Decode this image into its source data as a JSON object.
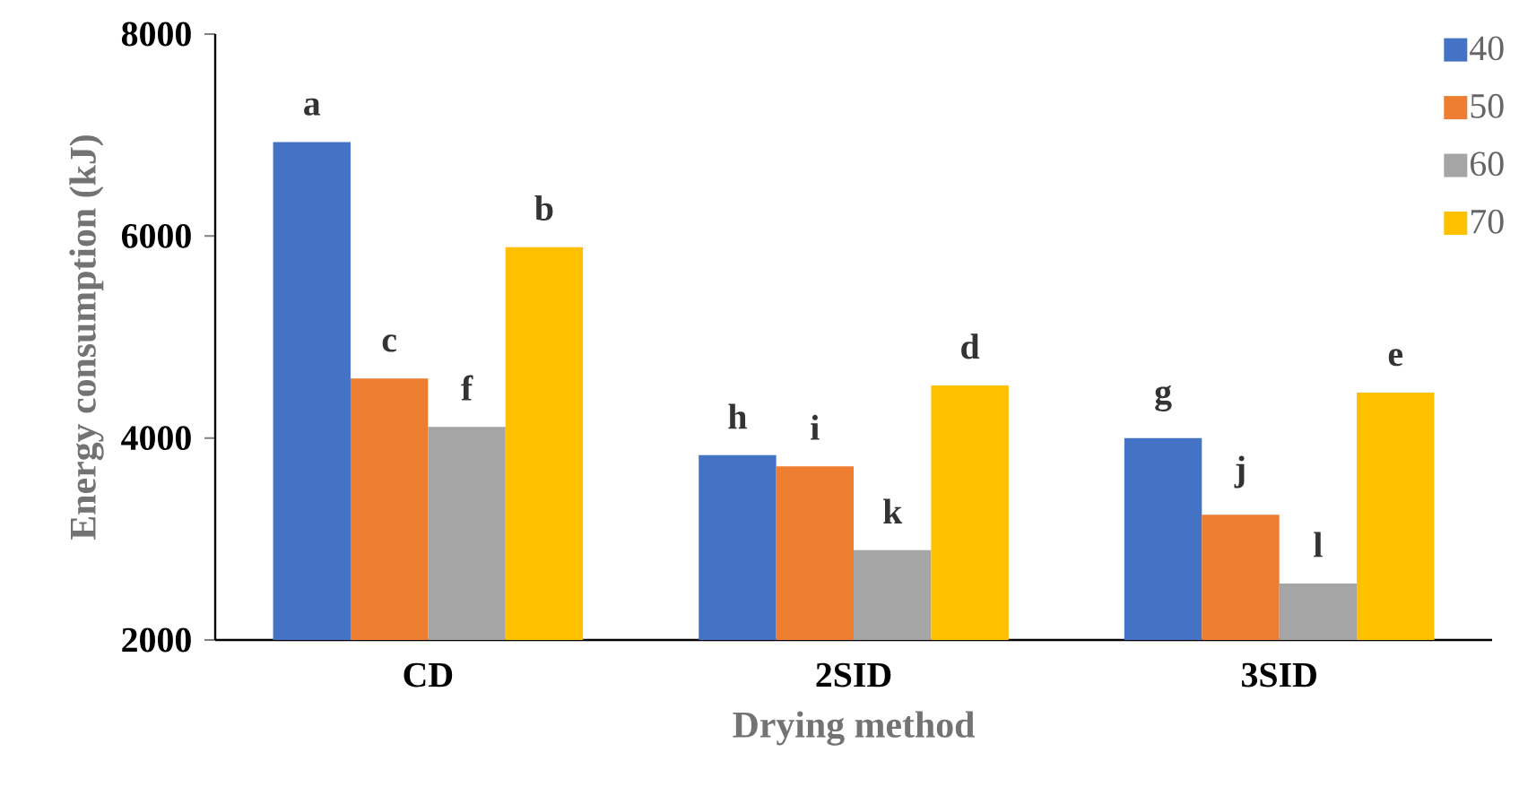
{
  "chart_data": {
    "type": "bar",
    "xlabel": "Drying method",
    "ylabel": "Energy consumption (kJ)",
    "categories": [
      "CD",
      "2SID",
      "3SID"
    ],
    "series": [
      {
        "name": "40",
        "color": "#4472c4",
        "values": [
          6930,
          3830,
          4000
        ],
        "value_labels": [
          "a",
          "h",
          "g"
        ]
      },
      {
        "name": "50",
        "color": "#ed7d31",
        "values": [
          4590,
          3720,
          3240
        ],
        "value_labels": [
          "c",
          "i",
          "j"
        ]
      },
      {
        "name": "60",
        "color": "#a5a5a5",
        "values": [
          4110,
          2890,
          2560
        ],
        "value_labels": [
          "f",
          "k",
          "l"
        ]
      },
      {
        "name": "70",
        "color": "#ffc000",
        "values": [
          5890,
          4520,
          4450
        ],
        "value_labels": [
          "b",
          "d",
          "e"
        ]
      }
    ],
    "ylim": [
      2000,
      8000
    ],
    "yticks": [
      2000,
      4000,
      6000,
      8000
    ],
    "grid": false,
    "legend": "top right"
  }
}
